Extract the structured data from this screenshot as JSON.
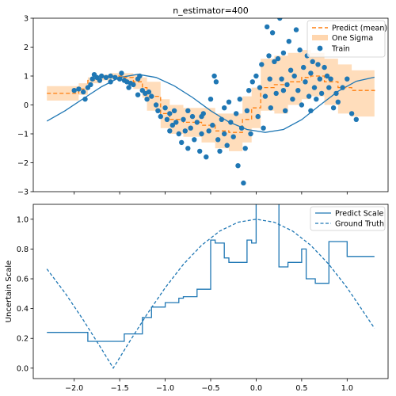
{
  "chart_data": [
    {
      "type": "line",
      "title": "n_estimator=400",
      "xlabel": "",
      "ylabel": "",
      "xlim": [
        -2.45,
        1.45
      ],
      "ylim": [
        -3,
        3
      ],
      "yticks": [
        -3,
        -2,
        -1,
        0,
        1,
        2,
        3
      ],
      "xticks": [
        -2.0,
        -1.5,
        -1.0,
        -0.5,
        0.0,
        0.5,
        1.0
      ],
      "xtick_labels_visible": false,
      "grid": false,
      "legend_position": "top-right",
      "legend": [
        "Predict (mean)",
        "One Sigma",
        "Train"
      ],
      "series": [
        {
          "name": "",
          "kind": "true function (sin)",
          "color": "#1f77b4",
          "x": [
            -2.3,
            -2.1,
            -1.9,
            -1.7,
            -1.5,
            -1.3,
            -1.1,
            -0.9,
            -0.7,
            -0.5,
            -0.3,
            -0.1,
            0.1,
            0.3,
            0.5,
            0.7,
            0.9,
            1.1,
            1.3
          ],
          "y": [
            -0.56,
            -0.2,
            0.22,
            0.63,
            0.95,
            1.06,
            0.95,
            0.66,
            0.26,
            -0.2,
            -0.59,
            -0.85,
            -0.95,
            -0.85,
            -0.51,
            -0.01,
            0.47,
            0.82,
            0.96
          ]
        },
        {
          "name": "Predict (mean)",
          "color": "#ff7f0e",
          "style": "dashed-step",
          "x": [
            -2.3,
            -1.95,
            -1.85,
            -1.7,
            -1.6,
            -1.45,
            -1.35,
            -1.25,
            -1.2,
            -1.05,
            -0.95,
            -0.8,
            -0.6,
            -0.45,
            -0.3,
            -0.15,
            -0.05,
            0.05,
            0.2,
            0.35,
            0.5,
            0.6,
            0.75,
            0.9,
            1.05,
            1.3
          ],
          "y": [
            0.4,
            0.55,
            0.85,
            0.95,
            1.0,
            0.95,
            0.8,
            0.6,
            0.3,
            -0.3,
            -0.5,
            -0.6,
            -0.7,
            -0.9,
            -0.95,
            -0.5,
            -0.1,
            0.6,
            0.7,
            0.8,
            0.95,
            1.0,
            0.8,
            0.6,
            0.5,
            0.45
          ]
        }
      ],
      "band": {
        "name": "One Sigma",
        "color": "#ffbb78",
        "x": [
          -2.3,
          -1.95,
          -1.85,
          -1.7,
          -1.6,
          -1.45,
          -1.35,
          -1.25,
          -1.2,
          -1.05,
          -0.95,
          -0.8,
          -0.6,
          -0.45,
          -0.3,
          -0.15,
          -0.05,
          0.05,
          0.2,
          0.35,
          0.5,
          0.6,
          0.75,
          0.9,
          1.05,
          1.3
        ],
        "lower": [
          0.15,
          0.35,
          0.75,
          0.85,
          0.88,
          0.8,
          0.55,
          0.25,
          -0.2,
          -0.8,
          -1.0,
          -1.1,
          -1.3,
          -1.5,
          -1.6,
          -1.3,
          -0.8,
          -0.2,
          -0.3,
          0.0,
          0.2,
          0.3,
          0.0,
          -0.3,
          -0.4,
          -0.3
        ],
        "upper": [
          0.65,
          0.75,
          0.95,
          1.05,
          1.1,
          1.1,
          1.05,
          0.95,
          0.8,
          0.2,
          0.0,
          -0.1,
          -0.1,
          -0.3,
          -0.3,
          0.3,
          0.6,
          1.6,
          1.7,
          1.8,
          1.9,
          1.8,
          1.6,
          1.4,
          1.2,
          1.2
        ]
      },
      "scatter": {
        "name": "Train",
        "color": "#1f77b4",
        "points": [
          [
            -2.0,
            0.5
          ],
          [
            -1.95,
            0.55
          ],
          [
            -1.9,
            0.45
          ],
          [
            -1.88,
            0.2
          ],
          [
            -1.85,
            0.6
          ],
          [
            -1.82,
            0.7
          ],
          [
            -1.8,
            0.9
          ],
          [
            -1.78,
            1.05
          ],
          [
            -1.75,
            0.95
          ],
          [
            -1.72,
            0.85
          ],
          [
            -1.7,
            1.0
          ],
          [
            -1.65,
            0.95
          ],
          [
            -1.6,
            1.0
          ],
          [
            -1.55,
            0.95
          ],
          [
            -1.5,
            0.9
          ],
          [
            -1.48,
            1.1
          ],
          [
            -1.45,
            0.85
          ],
          [
            -1.42,
            0.8
          ],
          [
            -1.4,
            0.6
          ],
          [
            -1.38,
            0.75
          ],
          [
            -1.35,
            0.7
          ],
          [
            -1.3,
            0.9
          ],
          [
            -1.28,
            1.0
          ],
          [
            -1.25,
            0.5
          ],
          [
            -1.22,
            0.4
          ],
          [
            -1.2,
            0.2
          ],
          [
            -1.18,
            0.45
          ],
          [
            -1.15,
            0.3
          ],
          [
            -1.1,
            0.0
          ],
          [
            -1.08,
            -0.2
          ],
          [
            -1.05,
            -0.4
          ],
          [
            -1.0,
            -0.1
          ],
          [
            -0.98,
            -0.5
          ],
          [
            -0.95,
            -0.3
          ],
          [
            -0.92,
            -0.7
          ],
          [
            -0.9,
            -0.2
          ],
          [
            -0.88,
            -0.6
          ],
          [
            -0.85,
            -1.0
          ],
          [
            -0.82,
            -1.3
          ],
          [
            -0.8,
            -0.5
          ],
          [
            -0.78,
            -0.9
          ],
          [
            -0.75,
            -1.5
          ],
          [
            -0.72,
            -0.8
          ],
          [
            -0.7,
            -0.4
          ],
          [
            -0.68,
            -1.2
          ],
          [
            -0.65,
            -0.6
          ],
          [
            -0.62,
            -1.6
          ],
          [
            -0.6,
            -1.0
          ],
          [
            -0.58,
            -0.3
          ],
          [
            -0.55,
            -1.8
          ],
          [
            -0.52,
            -0.9
          ],
          [
            -0.5,
            0.2
          ],
          [
            -0.48,
            -0.7
          ],
          [
            -0.46,
            1.0
          ],
          [
            -0.44,
            0.8
          ],
          [
            -0.42,
            -1.2
          ],
          [
            -0.4,
            -1.6
          ],
          [
            -0.38,
            -0.5
          ],
          [
            -0.35,
            -1.0
          ],
          [
            -0.32,
            -1.4
          ],
          [
            -0.3,
            0.1
          ],
          [
            -0.28,
            -0.6
          ],
          [
            -0.25,
            -1.1
          ],
          [
            -0.22,
            -0.3
          ],
          [
            -0.2,
            -2.1
          ],
          [
            -0.18,
            0.2
          ],
          [
            -0.16,
            -0.8
          ],
          [
            -0.14,
            -2.7
          ],
          [
            -0.12,
            -1.5
          ],
          [
            -0.1,
            -0.2
          ],
          [
            -0.08,
            0.5
          ],
          [
            -0.06,
            -1.0
          ],
          [
            -0.04,
            0.8
          ],
          [
            0.0,
            1.0
          ],
          [
            0.02,
            -0.4
          ],
          [
            0.04,
            0.6
          ],
          [
            0.06,
            1.4
          ],
          [
            0.08,
            -0.8
          ],
          [
            0.1,
            0.3
          ],
          [
            0.12,
            2.7
          ],
          [
            0.14,
            1.7
          ],
          [
            0.16,
            -0.1
          ],
          [
            0.18,
            2.5
          ],
          [
            0.2,
            1.5
          ],
          [
            0.22,
            0.4
          ],
          [
            0.24,
            1.6
          ],
          [
            0.26,
            3.0
          ],
          [
            0.28,
            0.9
          ],
          [
            0.3,
            1.8
          ],
          [
            0.32,
            -0.2
          ],
          [
            0.34,
            0.7
          ],
          [
            0.36,
            2.2
          ],
          [
            0.38,
            1.2
          ],
          [
            0.4,
            0.2
          ],
          [
            0.42,
            1.0
          ],
          [
            0.44,
            2.6
          ],
          [
            0.46,
            0.5
          ],
          [
            0.48,
            1.9
          ],
          [
            0.5,
            0.0
          ],
          [
            0.52,
            1.3
          ],
          [
            0.54,
            0.8
          ],
          [
            0.56,
            1.7
          ],
          [
            0.58,
            0.3
          ],
          [
            0.6,
            1.1
          ],
          [
            0.62,
            1.5
          ],
          [
            0.64,
            0.6
          ],
          [
            0.66,
            0.2
          ],
          [
            0.68,
            1.4
          ],
          [
            0.7,
            0.9
          ],
          [
            0.72,
            0.4
          ],
          [
            0.75,
            1.3
          ],
          [
            0.78,
            1.0
          ],
          [
            0.8,
            0.6
          ],
          [
            0.82,
            0.9
          ],
          [
            0.85,
            -0.1
          ],
          [
            0.88,
            0.4
          ],
          [
            0.9,
            0.1
          ],
          [
            0.95,
            0.6
          ],
          [
            1.0,
            0.9
          ],
          [
            1.05,
            -0.3
          ],
          [
            1.1,
            -0.5
          ],
          [
            0.15,
            0.9
          ],
          [
            -0.6,
            -0.4
          ],
          [
            -0.75,
            -0.2
          ],
          [
            -0.35,
            -0.1
          ],
          [
            0.3,
            0.5
          ],
          [
            0.6,
            -0.2
          ],
          [
            -1.3,
            0.35
          ],
          [
            -1.6,
            0.8
          ],
          [
            -0.95,
            -0.9
          ]
        ]
      }
    },
    {
      "type": "line",
      "title": "",
      "xlabel": "",
      "ylabel": "Uncertain Scale",
      "xlim": [
        -2.45,
        1.45
      ],
      "ylim": [
        -0.07,
        1.1
      ],
      "yticks": [
        0.0,
        0.2,
        0.4,
        0.6,
        0.8,
        1.0
      ],
      "ytick_labels": [
        "0.0",
        "0.2",
        "0.4",
        "0.6",
        "0.8",
        "1.0"
      ],
      "xticks": [
        -2.0,
        -1.5,
        -1.0,
        -0.5,
        0.0,
        0.5,
        1.0
      ],
      "xtick_labels": [
        "−2.0",
        "−1.5",
        "−1.0",
        "−0.5",
        "0.0",
        "0.5",
        "1.0"
      ],
      "grid": false,
      "legend_position": "top-right",
      "series": [
        {
          "name": "Predict Scale",
          "color": "#1f77b4",
          "style": "solid-step",
          "x": [
            -2.3,
            -1.9,
            -1.85,
            -1.5,
            -1.45,
            -1.3,
            -1.25,
            -1.15,
            -1.1,
            -1.0,
            -0.95,
            -0.85,
            -0.8,
            -0.7,
            -0.65,
            -0.55,
            -0.5,
            -0.45,
            -0.35,
            -0.3,
            -0.2,
            -0.1,
            -0.05,
            0.0,
            0.25,
            0.35,
            0.5,
            0.55,
            0.65,
            0.75,
            0.8,
            1.0,
            1.3
          ],
          "y": [
            0.24,
            0.24,
            0.18,
            0.18,
            0.23,
            0.23,
            0.34,
            0.41,
            0.41,
            0.44,
            0.44,
            0.47,
            0.48,
            0.48,
            0.53,
            0.53,
            0.86,
            0.84,
            0.74,
            0.71,
            0.71,
            0.86,
            0.84,
            1.3,
            0.68,
            0.71,
            0.8,
            0.6,
            0.57,
            0.57,
            0.85,
            0.75,
            0.75
          ]
        },
        {
          "name": "Ground Truth",
          "color": "#1f77b4",
          "style": "dashed",
          "x": [
            -2.3,
            -2.1,
            -1.9,
            -1.7,
            -1.571,
            -1.4,
            -1.2,
            -1.0,
            -0.8,
            -0.6,
            -0.4,
            -0.2,
            0.0,
            0.2,
            0.4,
            0.6,
            0.8,
            1.0,
            1.3
          ],
          "y": [
            0.666,
            0.505,
            0.323,
            0.129,
            0.0,
            0.17,
            0.362,
            0.54,
            0.697,
            0.825,
            0.921,
            0.98,
            1.0,
            0.98,
            0.921,
            0.825,
            0.697,
            0.54,
            0.268
          ]
        }
      ]
    }
  ]
}
